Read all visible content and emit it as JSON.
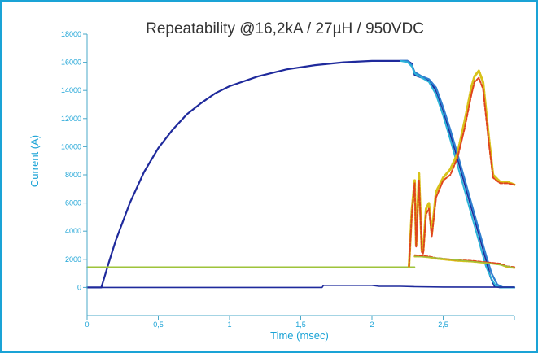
{
  "chart_data": {
    "type": "line",
    "title": "Repeatability @16,2kA / 27µH / 950VDC",
    "xlabel": "Time (msec)",
    "ylabel": "Current (A)",
    "xlim": [
      0,
      3.0
    ],
    "ylim": [
      -2000,
      18000
    ],
    "x_ticks": [
      0,
      0.5,
      1,
      1.5,
      2,
      2.5,
      3
    ],
    "x_tick_labels": [
      "0",
      "0,5",
      "1",
      "1,5",
      "2",
      "2,5",
      ""
    ],
    "y_ticks": [
      0,
      2000,
      4000,
      6000,
      8000,
      10000,
      12000,
      14000,
      16000,
      18000
    ],
    "y_tick_labels": [
      "0",
      "2000",
      "4000",
      "6000",
      "8000",
      "10000",
      "12000",
      "14000",
      "16000",
      "18000"
    ],
    "grid": false,
    "colors": {
      "frame": "#1aa3d6",
      "axis": "#4aa8c9",
      "current_main": "#1f2a9c",
      "current_alt": "#2f7fd0",
      "current_cyan": "#2cb3d8",
      "voltage_green": "#9ec33a",
      "arc_red": "#e0441e",
      "arc_yellow": "#d8c21a"
    },
    "series": [
      {
        "key": "current_main",
        "style": "solid",
        "width": 2.2,
        "x": [
          0,
          0.09,
          0.1,
          0.15,
          0.2,
          0.3,
          0.4,
          0.5,
          0.6,
          0.7,
          0.8,
          0.9,
          1.0,
          1.2,
          1.4,
          1.6,
          1.8,
          2.0,
          2.1,
          2.2,
          2.25,
          2.28,
          2.3,
          2.35,
          2.4,
          2.45,
          2.5,
          2.55,
          2.6,
          2.65,
          2.7,
          2.75,
          2.8,
          2.83,
          2.86,
          2.9,
          3.0
        ],
        "y": [
          0,
          0,
          0,
          1700,
          3300,
          6000,
          8200,
          9900,
          11200,
          12300,
          13100,
          13800,
          14300,
          15000,
          15500,
          15800,
          16000,
          16100,
          16100,
          16100,
          16100,
          15900,
          15100,
          14900,
          14700,
          14000,
          12600,
          10900,
          9200,
          7400,
          5600,
          3800,
          2000,
          800,
          100,
          0,
          0
        ]
      },
      {
        "key": "current_alt",
        "style": "solid",
        "width": 2.2,
        "x": [
          2.2,
          2.25,
          2.28,
          2.3,
          2.35,
          2.4,
          2.45,
          2.5,
          2.55,
          2.6,
          2.65,
          2.7,
          2.75,
          2.8,
          2.84,
          2.88,
          2.92,
          3.0
        ],
        "y": [
          16100,
          16100,
          15800,
          15300,
          15000,
          14800,
          14200,
          12800,
          11200,
          9500,
          7700,
          5900,
          4100,
          2300,
          1000,
          200,
          0,
          0
        ]
      },
      {
        "key": "current_cyan",
        "style": "solid",
        "width": 2.0,
        "x": [
          2.2,
          2.25,
          2.28,
          2.3,
          2.35,
          2.4,
          2.45,
          2.5,
          2.55,
          2.6,
          2.65,
          2.7,
          2.75,
          2.8,
          2.84,
          2.87,
          2.9,
          3.0
        ],
        "y": [
          16100,
          16000,
          15700,
          15200,
          14900,
          14600,
          13700,
          12200,
          10500,
          8700,
          6900,
          5100,
          3300,
          1500,
          600,
          100,
          0,
          0
        ]
      },
      {
        "key": "current_main",
        "style": "solid",
        "width": 1.6,
        "x": [
          0,
          1.65,
          1.66,
          2.0,
          2.05,
          2.2,
          2.3,
          2.5,
          3.0
        ],
        "y": [
          0,
          0,
          150,
          150,
          80,
          80,
          50,
          30,
          20
        ]
      },
      {
        "key": "voltage_green",
        "style": "solid",
        "width": 1.6,
        "x": [
          0,
          0.5,
          1.0,
          1.5,
          2.0,
          2.25,
          2.3
        ],
        "y": [
          1450,
          1450,
          1450,
          1450,
          1450,
          1450,
          1450
        ]
      },
      {
        "key": "arc_yellow",
        "style": "dotted",
        "width": 3.0,
        "x": [
          2.26,
          2.28,
          2.3,
          2.31,
          2.33,
          2.35,
          2.36,
          2.38,
          2.4,
          2.42,
          2.45,
          2.5,
          2.55,
          2.6,
          2.65,
          2.7,
          2.72,
          2.75,
          2.78,
          2.82,
          2.85,
          2.9,
          2.95,
          3.0
        ],
        "y": [
          1500,
          5500,
          7600,
          3000,
          8100,
          2600,
          2600,
          5600,
          6000,
          3800,
          6800,
          7800,
          8400,
          9500,
          11800,
          14300,
          15000,
          15400,
          14600,
          10700,
          8000,
          7500,
          7500,
          7300
        ]
      },
      {
        "key": "arc_red",
        "style": "dashed",
        "width": 2.0,
        "x": [
          2.26,
          2.28,
          2.3,
          2.31,
          2.33,
          2.35,
          2.36,
          2.38,
          2.4,
          2.42,
          2.45,
          2.5,
          2.55,
          2.6,
          2.65,
          2.7,
          2.72,
          2.75,
          2.78,
          2.82,
          2.85,
          2.9,
          2.95,
          3.0
        ],
        "y": [
          1500,
          5200,
          7400,
          2900,
          7600,
          2500,
          2400,
          5200,
          5600,
          3600,
          6400,
          7600,
          8000,
          9200,
          11300,
          13800,
          14600,
          14900,
          14100,
          10300,
          7800,
          7400,
          7400,
          7300
        ]
      },
      {
        "key": "arc_yellow",
        "style": "dotted",
        "width": 2.5,
        "x": [
          2.3,
          2.35,
          2.4,
          2.45,
          2.5,
          2.6,
          2.7,
          2.8,
          2.9,
          2.95,
          3.0
        ],
        "y": [
          2200,
          2200,
          2150,
          2050,
          2000,
          1900,
          1850,
          1750,
          1650,
          1450,
          1400
        ]
      },
      {
        "key": "arc_red",
        "style": "dashed",
        "width": 1.8,
        "x": [
          2.3,
          2.35,
          2.4,
          2.45,
          2.5,
          2.6,
          2.7,
          2.8,
          2.9,
          2.95,
          3.0
        ],
        "y": [
          2300,
          2250,
          2200,
          2100,
          2050,
          1950,
          1900,
          1800,
          1700,
          1500,
          1450
        ]
      },
      {
        "key": "voltage_green",
        "style": "solid",
        "width": 1.4,
        "x": [
          2.3,
          2.4,
          2.5,
          2.6,
          2.7,
          2.8,
          2.9,
          3.0
        ],
        "y": [
          2200,
          2150,
          2050,
          1950,
          1850,
          1750,
          1600,
          1400
        ]
      }
    ]
  }
}
